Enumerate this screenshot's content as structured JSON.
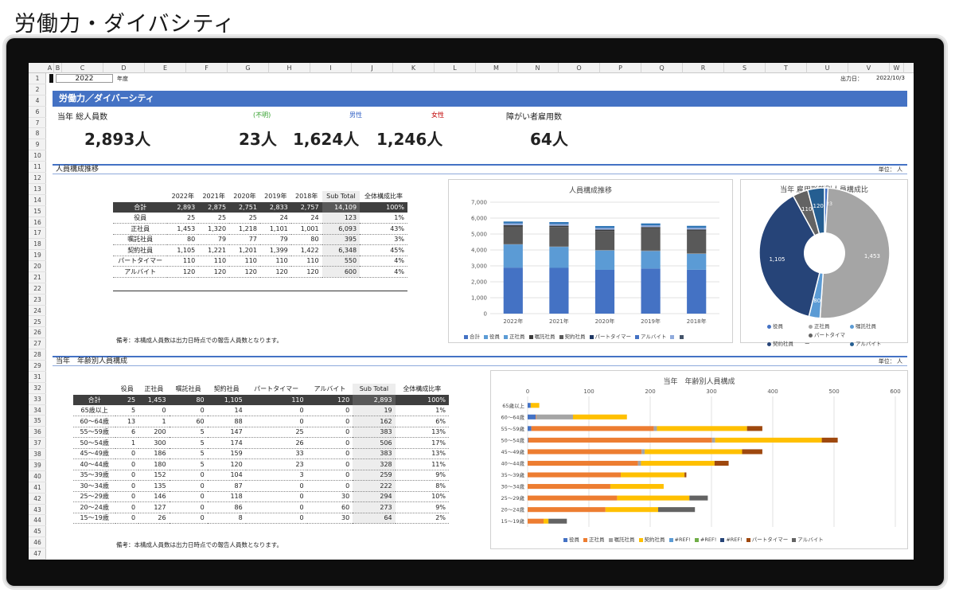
{
  "page_title": "労働力・ダイバシティ",
  "columns": [
    "A",
    "B",
    "C",
    "D",
    "E",
    "F",
    "G",
    "H",
    "I",
    "J",
    "K",
    "L",
    "M",
    "N",
    "O",
    "P",
    "Q",
    "R",
    "S",
    "T",
    "U",
    "V",
    "W"
  ],
  "rows": [
    "1",
    "2",
    "4",
    "6",
    "7",
    "8",
    "9",
    "10",
    "11",
    "12",
    "13",
    "14",
    "15",
    "16",
    "17",
    "18",
    "19",
    "20",
    "21",
    "22",
    "23",
    "24",
    "25",
    "26",
    "27",
    "28",
    "29",
    "31",
    "32",
    "33",
    "34",
    "35",
    "36",
    "37",
    "38",
    "39",
    "40",
    "41",
    "42",
    "43",
    "44",
    "45",
    "46",
    "47"
  ],
  "header": {
    "year": "2022",
    "year_suffix": "年度",
    "output_label": "出力日：",
    "output_date": "2022/10/3"
  },
  "band_title": "労働力／ダイバーシティ",
  "kpi": {
    "total_label": "当年 総人員数",
    "total_value": "2,893人",
    "unknown_label": "(不明)",
    "unknown_value": "23人",
    "male_label": "男性",
    "male_value": "1,624人",
    "female_label": "女性",
    "female_value": "1,246人",
    "disabled_label": "障がい者雇用数",
    "disabled_value": "64人"
  },
  "colors": {
    "accent": "#4472c4",
    "male": "#2f5fc4",
    "female": "#c00000",
    "unknown": "#33a02c"
  },
  "section1": {
    "title": "人員構成推移",
    "unit": "単位： 人",
    "note": "備考：本構成人員数は出力日時点での報告人員数となります。"
  },
  "table1": {
    "headers": [
      "",
      "2022年",
      "2021年",
      "2020年",
      "2019年",
      "2018年",
      "Sub Total",
      "全体構成比率"
    ],
    "total": [
      "合計",
      "2,893",
      "2,875",
      "2,751",
      "2,833",
      "2,757",
      "14,109",
      "100%"
    ],
    "rows": [
      [
        "役員",
        "25",
        "25",
        "25",
        "24",
        "24",
        "123",
        "1%"
      ],
      [
        "正社員",
        "1,453",
        "1,320",
        "1,218",
        "1,101",
        "1,001",
        "6,093",
        "43%"
      ],
      [
        "嘱託社員",
        "80",
        "79",
        "77",
        "79",
        "80",
        "395",
        "3%"
      ],
      [
        "契約社員",
        "1,105",
        "1,221",
        "1,201",
        "1,399",
        "1,422",
        "6,348",
        "45%"
      ],
      [
        "パートタイマー",
        "110",
        "110",
        "110",
        "110",
        "110",
        "550",
        "4%"
      ],
      [
        "アルバイト",
        "120",
        "120",
        "120",
        "120",
        "120",
        "600",
        "4%"
      ]
    ]
  },
  "section2": {
    "title": "当年　年齢別人員構成",
    "unit": "単位： 人",
    "note": "備考：本構成人員数は出力日時点での報告人員数となります。"
  },
  "table2": {
    "headers": [
      "",
      "役員",
      "正社員",
      "嘱託社員",
      "契約社員",
      "パートタイマー",
      "アルバイト",
      "Sub Total",
      "全体構成比率"
    ],
    "total": [
      "合計",
      "25",
      "1,453",
      "80",
      "1,105",
      "110",
      "120",
      "2,893",
      "100%"
    ],
    "rows": [
      [
        "65歳以上",
        "5",
        "0",
        "0",
        "14",
        "0",
        "0",
        "19",
        "1%"
      ],
      [
        "60～64歳",
        "13",
        "1",
        "60",
        "88",
        "0",
        "0",
        "162",
        "6%"
      ],
      [
        "55～59歳",
        "6",
        "200",
        "5",
        "147",
        "25",
        "0",
        "383",
        "13%"
      ],
      [
        "50～54歳",
        "1",
        "300",
        "5",
        "174",
        "26",
        "0",
        "506",
        "17%"
      ],
      [
        "45～49歳",
        "0",
        "186",
        "5",
        "159",
        "33",
        "0",
        "383",
        "13%"
      ],
      [
        "40～44歳",
        "0",
        "180",
        "5",
        "120",
        "23",
        "0",
        "328",
        "11%"
      ],
      [
        "35～39歳",
        "0",
        "152",
        "0",
        "104",
        "3",
        "0",
        "259",
        "9%"
      ],
      [
        "30～34歳",
        "0",
        "135",
        "0",
        "87",
        "0",
        "0",
        "222",
        "8%"
      ],
      [
        "25～29歳",
        "0",
        "146",
        "0",
        "118",
        "0",
        "30",
        "294",
        "10%"
      ],
      [
        "20～24歳",
        "0",
        "127",
        "0",
        "86",
        "0",
        "60",
        "273",
        "9%"
      ],
      [
        "15～19歳",
        "0",
        "26",
        "0",
        "8",
        "0",
        "30",
        "64",
        "2%"
      ]
    ]
  },
  "chart_data": [
    {
      "type": "bar",
      "stacked": true,
      "title": "人員構成推移",
      "categories": [
        "2022年",
        "2021年",
        "2020年",
        "2019年",
        "2018年"
      ],
      "ylim": [
        0,
        7000
      ],
      "yticks": [
        "0",
        "1,000",
        "2,000",
        "3,000",
        "4,000",
        "5,000",
        "6,000",
        "7,000"
      ],
      "grid": true,
      "legend_position": "bottom",
      "legend": [
        "合計",
        "役員",
        "正社員",
        "嘱託社員",
        "契約社員",
        "パートタイマー",
        "アルバイト",
        "",
        ""
      ],
      "legend_colors": [
        "#4472c4",
        "#5b9bd5",
        "#5b9bd5",
        "#3b3b3b",
        "#595959",
        "#1f3864",
        "#4472c4",
        "#8faadc",
        "#44546a"
      ],
      "series": [
        {
          "values": [
            2893,
            2875,
            2751,
            2833,
            2757
          ],
          "color": "#4472c4"
        },
        {
          "values": [
            1453,
            1320,
            1218,
            1101,
            1001
          ],
          "color": "#5b9bd5"
        },
        {
          "values": [
            25,
            25,
            25,
            24,
            24
          ],
          "color": "#7f7f7f"
        },
        {
          "values": [
            1105,
            1221,
            1201,
            1399,
            1422
          ],
          "color": "#595959"
        },
        {
          "values": [
            80,
            79,
            77,
            79,
            80
          ],
          "color": "#3a3a3a"
        },
        {
          "values": [
            110,
            110,
            110,
            110,
            110
          ],
          "color": "#8faadc"
        },
        {
          "values": [
            120,
            120,
            120,
            120,
            120
          ],
          "color": "#2e75b6"
        }
      ]
    },
    {
      "type": "pie",
      "title": "当年 雇用形態別人員構成比",
      "donut": true,
      "legend_position": "bottom",
      "slices": [
        {
          "name": "役員",
          "value": 25,
          "label": "",
          "color": "#4472c4"
        },
        {
          "name": "正社員",
          "value": 1453,
          "label": "1,453",
          "color": "#a5a5a5"
        },
        {
          "name": "嘱託社員",
          "value": 80,
          "label": "80",
          "color": "#5b9bd5"
        },
        {
          "name": "契約社員",
          "value": 1105,
          "label": "1,105",
          "color": "#264478"
        },
        {
          "name": "パートタイマー",
          "value": 110,
          "label": "110",
          "color": "#636363"
        },
        {
          "name": "アルバイト",
          "value": 120,
          "label": "120",
          "color": "#255e91"
        }
      ],
      "extra_labels": [
        "2",
        "3"
      ]
    },
    {
      "type": "bar",
      "orientation": "horizontal",
      "stacked": true,
      "title": "当年　年齢別人員構成",
      "categories": [
        "65歳以上",
        "60～64歳",
        "55～59歳",
        "50～54歳",
        "45～49歳",
        "40～44歳",
        "35～39歳",
        "30～34歳",
        "25～29歳",
        "20～24歳",
        "15～19歳"
      ],
      "xlim": [
        0,
        600
      ],
      "xticks": [
        "0",
        "100",
        "200",
        "300",
        "400",
        "500",
        "600"
      ],
      "grid": true,
      "legend_position": "bottom",
      "series": [
        {
          "name": "役員",
          "values": [
            5,
            13,
            6,
            1,
            0,
            0,
            0,
            0,
            0,
            0,
            0
          ],
          "color": "#4472c4"
        },
        {
          "name": "正社員",
          "values": [
            0,
            1,
            200,
            300,
            186,
            180,
            152,
            135,
            146,
            127,
            26
          ],
          "color": "#ed7d31"
        },
        {
          "name": "嘱託社員",
          "values": [
            0,
            60,
            5,
            5,
            5,
            5,
            0,
            0,
            0,
            0,
            0
          ],
          "color": "#a5a5a5"
        },
        {
          "name": "契約社員",
          "values": [
            14,
            88,
            147,
            174,
            159,
            120,
            104,
            87,
            118,
            86,
            8
          ],
          "color": "#ffc000"
        },
        {
          "name": "#REF!",
          "values": [
            0,
            0,
            0,
            0,
            0,
            0,
            0,
            0,
            0,
            0,
            0
          ],
          "color": "#5b9bd5"
        },
        {
          "name": "#REF!",
          "values": [
            0,
            0,
            0,
            0,
            0,
            0,
            0,
            0,
            0,
            0,
            0
          ],
          "color": "#70ad47"
        },
        {
          "name": "#REF!",
          "values": [
            0,
            0,
            0,
            0,
            0,
            0,
            0,
            0,
            0,
            0,
            0
          ],
          "color": "#264478"
        },
        {
          "name": "パートタイマー",
          "values": [
            0,
            0,
            25,
            26,
            33,
            23,
            3,
            0,
            0,
            0,
            0
          ],
          "color": "#9e480e"
        },
        {
          "name": "アルバイト",
          "values": [
            0,
            0,
            0,
            0,
            0,
            0,
            0,
            0,
            30,
            60,
            30
          ],
          "color": "#636363"
        }
      ]
    }
  ]
}
